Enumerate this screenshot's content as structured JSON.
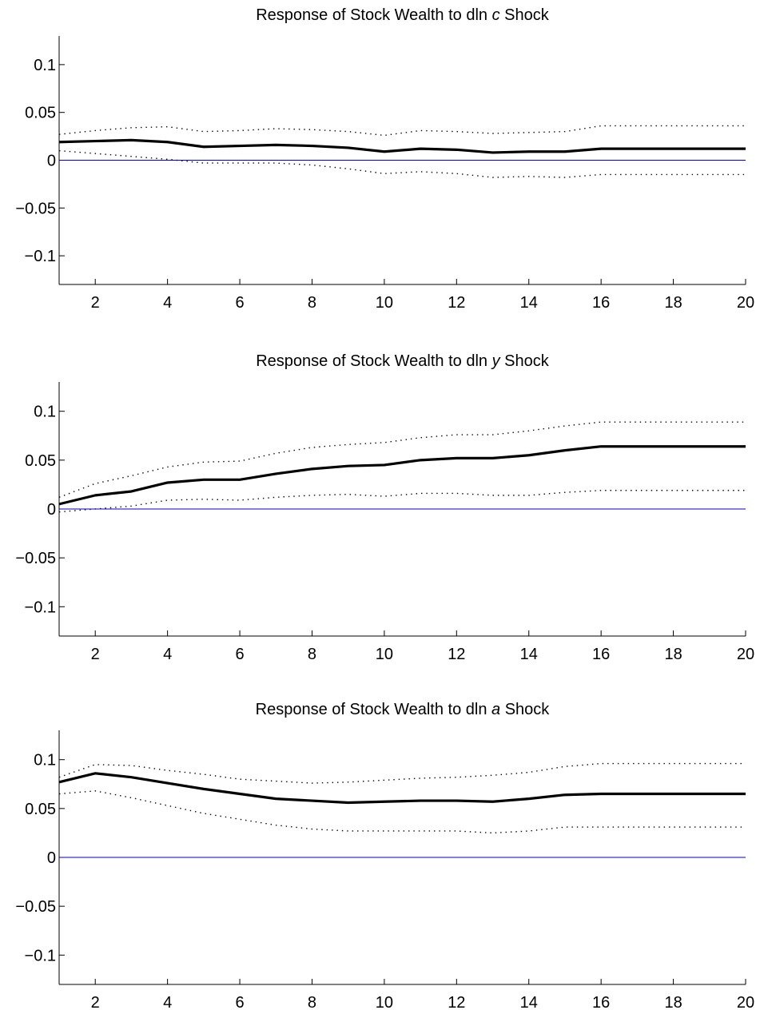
{
  "colors": {
    "irf_line": "#000000",
    "band_line": "#000000",
    "zero_line": "#0000cc",
    "axes": "#000000",
    "background": "#ffffff"
  },
  "chart_data": [
    {
      "type": "line",
      "title": {
        "prefix": "Response of Stock Wealth to dln ",
        "variable": "c",
        "suffix": " Shock"
      },
      "xlabel": "",
      "ylabel": "",
      "xlim": [
        1,
        20
      ],
      "ylim": [
        -0.13,
        0.13
      ],
      "x_ticks": [
        2,
        4,
        6,
        8,
        10,
        12,
        14,
        16,
        18,
        20
      ],
      "y_ticks": [
        0.1,
        0.05,
        0,
        -0.05,
        -0.1
      ],
      "y_tick_labels": [
        "0.1",
        "0.05",
        "0",
        "−0.05",
        "−0.1"
      ],
      "grid": false,
      "x": [
        1,
        2,
        3,
        4,
        5,
        6,
        7,
        8,
        9,
        10,
        11,
        12,
        13,
        14,
        15,
        16,
        17,
        18,
        19,
        20
      ],
      "series": [
        {
          "role": "response",
          "style": "solid",
          "values": [
            0.019,
            0.02,
            0.021,
            0.019,
            0.014,
            0.015,
            0.016,
            0.015,
            0.013,
            0.009,
            0.012,
            0.011,
            0.008,
            0.009,
            0.009,
            0.012,
            0.012,
            0.012,
            0.012,
            0.012
          ]
        },
        {
          "role": "upper_band",
          "style": "dotted",
          "values": [
            0.027,
            0.031,
            0.034,
            0.035,
            0.03,
            0.031,
            0.033,
            0.032,
            0.03,
            0.026,
            0.031,
            0.03,
            0.028,
            0.029,
            0.03,
            0.036,
            0.036,
            0.036,
            0.036,
            0.036
          ]
        },
        {
          "role": "lower_band",
          "style": "dotted",
          "values": [
            0.01,
            0.007,
            0.004,
            0.001,
            -0.003,
            -0.003,
            -0.003,
            -0.005,
            -0.009,
            -0.014,
            -0.012,
            -0.014,
            -0.018,
            -0.017,
            -0.018,
            -0.015,
            -0.015,
            -0.015,
            -0.015,
            -0.015
          ]
        },
        {
          "role": "zero_line",
          "style": "solid-blue",
          "values": [
            0,
            0,
            0,
            0,
            0,
            0,
            0,
            0,
            0,
            0,
            0,
            0,
            0,
            0,
            0,
            0,
            0,
            0,
            0,
            0
          ]
        }
      ]
    },
    {
      "type": "line",
      "title": {
        "prefix": "Response of Stock Wealth to dln ",
        "variable": "y",
        "suffix": " Shock"
      },
      "xlabel": "",
      "ylabel": "",
      "xlim": [
        1,
        20
      ],
      "ylim": [
        -0.13,
        0.13
      ],
      "x_ticks": [
        2,
        4,
        6,
        8,
        10,
        12,
        14,
        16,
        18,
        20
      ],
      "y_ticks": [
        0.1,
        0.05,
        0,
        -0.05,
        -0.1
      ],
      "y_tick_labels": [
        "0.1",
        "0.05",
        "0",
        "−0.05",
        "−0.1"
      ],
      "grid": false,
      "x": [
        1,
        2,
        3,
        4,
        5,
        6,
        7,
        8,
        9,
        10,
        11,
        12,
        13,
        14,
        15,
        16,
        17,
        18,
        19,
        20
      ],
      "series": [
        {
          "role": "response",
          "style": "solid",
          "values": [
            0.005,
            0.014,
            0.018,
            0.027,
            0.03,
            0.03,
            0.036,
            0.041,
            0.044,
            0.045,
            0.05,
            0.052,
            0.052,
            0.055,
            0.06,
            0.064,
            0.064,
            0.064,
            0.064,
            0.064
          ]
        },
        {
          "role": "upper_band",
          "style": "dotted",
          "values": [
            0.012,
            0.026,
            0.034,
            0.043,
            0.048,
            0.049,
            0.057,
            0.063,
            0.066,
            0.068,
            0.073,
            0.076,
            0.076,
            0.08,
            0.085,
            0.089,
            0.089,
            0.089,
            0.089,
            0.089
          ]
        },
        {
          "role": "lower_band",
          "style": "dotted",
          "values": [
            -0.003,
            0.0,
            0.003,
            0.009,
            0.01,
            0.009,
            0.012,
            0.014,
            0.015,
            0.013,
            0.016,
            0.016,
            0.014,
            0.014,
            0.017,
            0.019,
            0.019,
            0.019,
            0.019,
            0.019
          ]
        },
        {
          "role": "zero_line",
          "style": "solid-blue",
          "values": [
            0,
            0,
            0,
            0,
            0,
            0,
            0,
            0,
            0,
            0,
            0,
            0,
            0,
            0,
            0,
            0,
            0,
            0,
            0,
            0
          ]
        }
      ]
    },
    {
      "type": "line",
      "title": {
        "prefix": "Response of Stock Wealth to dln ",
        "variable": "a",
        "suffix": " Shock"
      },
      "xlabel": "",
      "ylabel": "",
      "xlim": [
        1,
        20
      ],
      "ylim": [
        -0.13,
        0.13
      ],
      "x_ticks": [
        2,
        4,
        6,
        8,
        10,
        12,
        14,
        16,
        18,
        20
      ],
      "y_ticks": [
        0.1,
        0.05,
        0,
        -0.05,
        -0.1
      ],
      "y_tick_labels": [
        "0.1",
        "0.05",
        "0",
        "−0.05",
        "−0.1"
      ],
      "grid": false,
      "x": [
        1,
        2,
        3,
        4,
        5,
        6,
        7,
        8,
        9,
        10,
        11,
        12,
        13,
        14,
        15,
        16,
        17,
        18,
        19,
        20
      ],
      "series": [
        {
          "role": "response",
          "style": "solid",
          "values": [
            0.077,
            0.086,
            0.082,
            0.076,
            0.07,
            0.065,
            0.06,
            0.058,
            0.056,
            0.057,
            0.058,
            0.058,
            0.057,
            0.06,
            0.064,
            0.065,
            0.065,
            0.065,
            0.065,
            0.065
          ]
        },
        {
          "role": "upper_band",
          "style": "dotted",
          "values": [
            0.082,
            0.095,
            0.094,
            0.089,
            0.085,
            0.08,
            0.078,
            0.076,
            0.077,
            0.079,
            0.081,
            0.082,
            0.084,
            0.087,
            0.093,
            0.096,
            0.096,
            0.096,
            0.096,
            0.096
          ]
        },
        {
          "role": "lower_band",
          "style": "dotted",
          "values": [
            0.065,
            0.068,
            0.061,
            0.053,
            0.045,
            0.039,
            0.033,
            0.029,
            0.027,
            0.027,
            0.027,
            0.027,
            0.025,
            0.027,
            0.031,
            0.031,
            0.031,
            0.031,
            0.031,
            0.031
          ]
        },
        {
          "role": "zero_line",
          "style": "solid-blue",
          "values": [
            0,
            0,
            0,
            0,
            0,
            0,
            0,
            0,
            0,
            0,
            0,
            0,
            0,
            0,
            0,
            0,
            0,
            0,
            0,
            0
          ]
        }
      ]
    }
  ]
}
